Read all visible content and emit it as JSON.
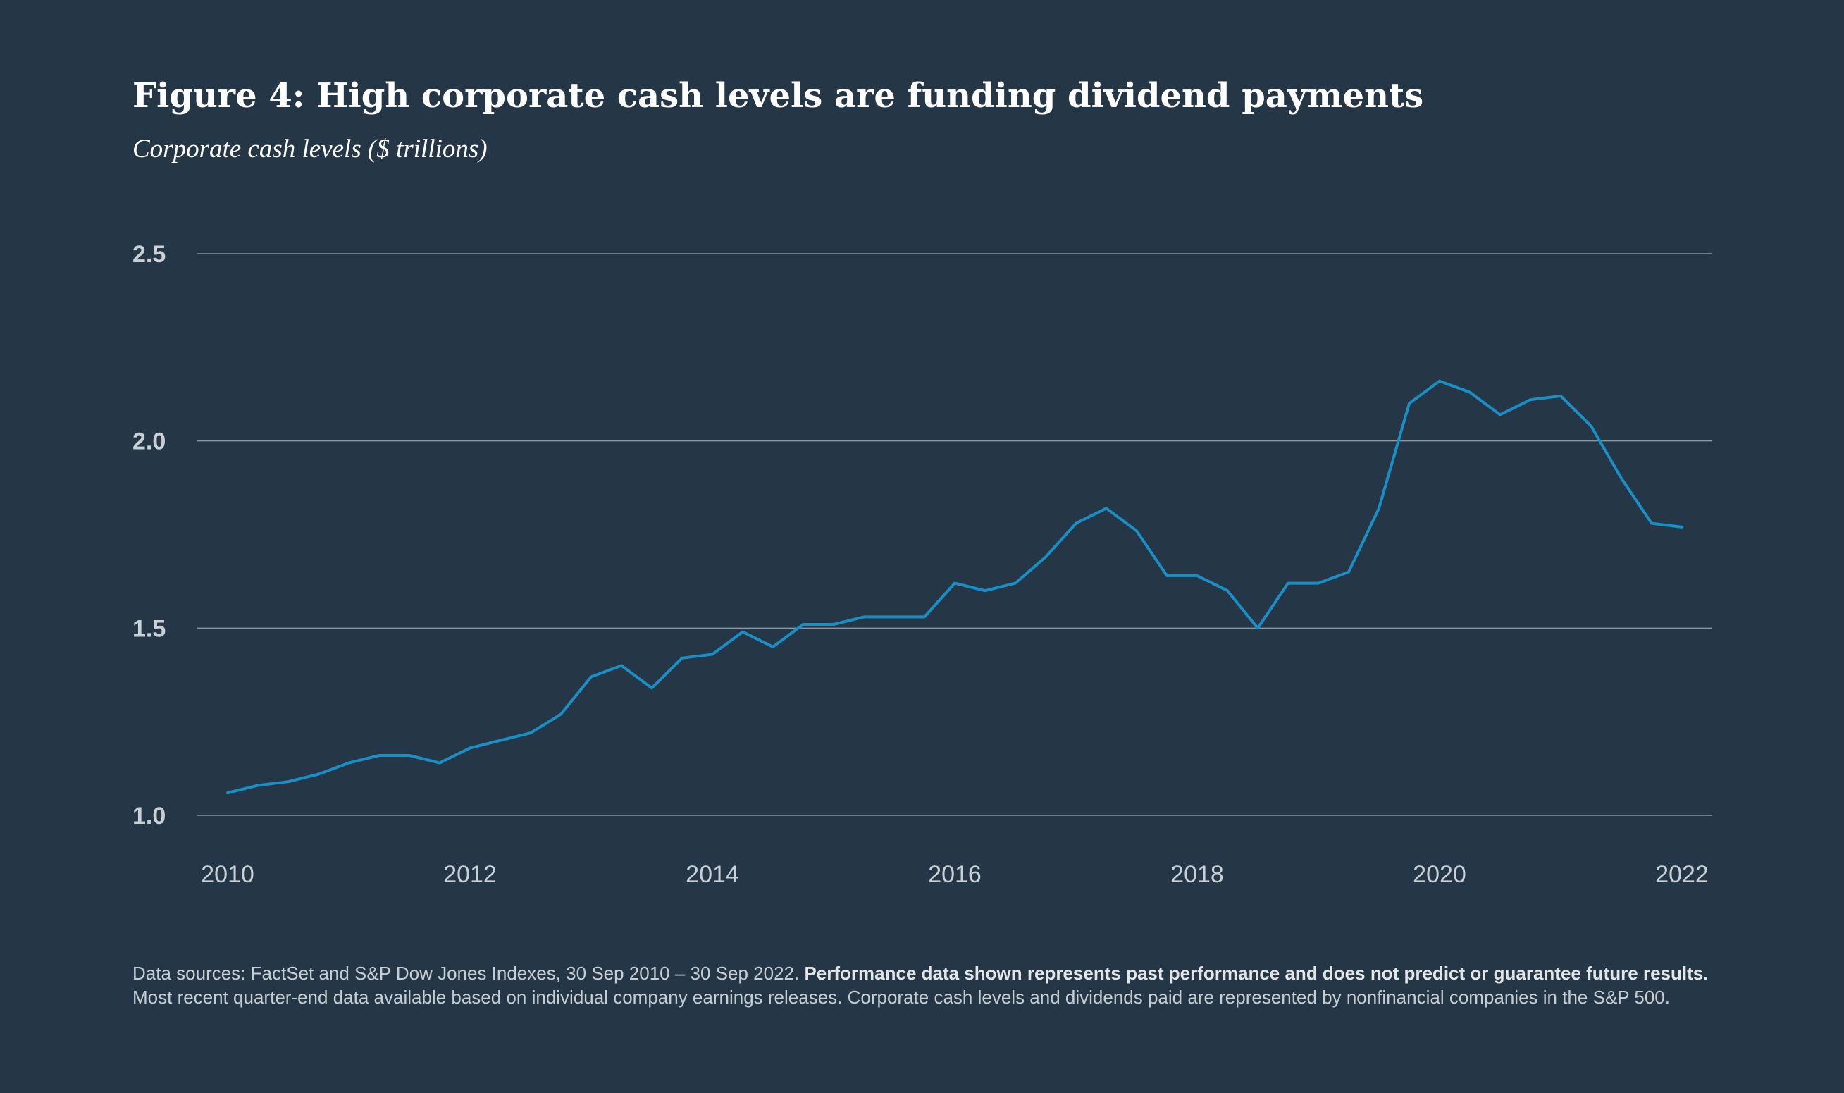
{
  "title": "Figure 4: High corporate cash levels are funding dividend payments",
  "subtitle": "Corporate cash levels ($ trillions)",
  "colors": {
    "background": "#253746",
    "line": "#1a8fc6",
    "grid": "#8796a2",
    "tick_text": "#c9d0d6"
  },
  "chart_data": {
    "type": "line",
    "title": "Figure 4: High corporate cash levels are funding dividend payments",
    "subtitle": "Corporate cash levels ($ trillions)",
    "xlabel": "",
    "ylabel": "",
    "xlim": [
      2009.75,
      2022.25
    ],
    "ylim": [
      1.0,
      2.5
    ],
    "yticks": [
      "1.0",
      "1.5",
      "2.0",
      "2.5"
    ],
    "xticks": [
      "2010",
      "2012",
      "2014",
      "2016",
      "2018",
      "2020",
      "2022"
    ],
    "grid": "horizontal",
    "legend": "none",
    "series": [
      {
        "x": [
          "2010-Q1",
          "2010-Q2",
          "2010-Q3",
          "2010-Q4",
          "2011-Q1",
          "2011-Q2",
          "2011-Q3",
          "2011-Q4",
          "2012-Q1",
          "2012-Q2",
          "2012-Q3",
          "2012-Q4",
          "2013-Q1",
          "2013-Q2",
          "2013-Q3",
          "2013-Q4",
          "2014-Q1",
          "2014-Q2",
          "2014-Q3",
          "2014-Q4",
          "2015-Q1",
          "2015-Q2",
          "2015-Q3",
          "2015-Q4",
          "2016-Q1",
          "2016-Q2",
          "2016-Q3",
          "2016-Q4",
          "2017-Q1",
          "2017-Q2",
          "2017-Q3",
          "2017-Q4",
          "2018-Q1",
          "2018-Q2",
          "2018-Q3",
          "2018-Q4",
          "2019-Q1",
          "2019-Q2",
          "2019-Q3",
          "2019-Q4",
          "2020-Q1",
          "2020-Q2",
          "2020-Q3",
          "2020-Q4",
          "2021-Q1",
          "2021-Q2",
          "2021-Q3",
          "2021-Q4",
          "2022-Q1"
        ],
        "values": [
          1.06,
          1.08,
          1.09,
          1.11,
          1.14,
          1.16,
          1.16,
          1.14,
          1.18,
          1.2,
          1.22,
          1.27,
          1.37,
          1.4,
          1.34,
          1.42,
          1.43,
          1.49,
          1.45,
          1.51,
          1.51,
          1.53,
          1.53,
          1.53,
          1.62,
          1.6,
          1.62,
          1.69,
          1.78,
          1.82,
          1.76,
          1.64,
          1.64,
          1.6,
          1.5,
          1.62,
          1.62,
          1.65,
          1.82,
          2.1,
          2.16,
          2.13,
          2.07,
          2.11,
          2.12,
          2.04,
          1.9,
          1.78,
          1.77
        ]
      }
    ]
  },
  "footnote": {
    "part1": "Data sources: FactSet and S&P Dow Jones Indexes, 30 Sep 2010 – 30 Sep 2022. ",
    "bold": "Performance data shown represents past performance and does not predict or guarantee future results.",
    "part2": " Most recent quarter-end data available based on individual company earnings releases. Corporate cash levels and dividends paid are represented by nonfinancial companies in the S&P 500."
  }
}
